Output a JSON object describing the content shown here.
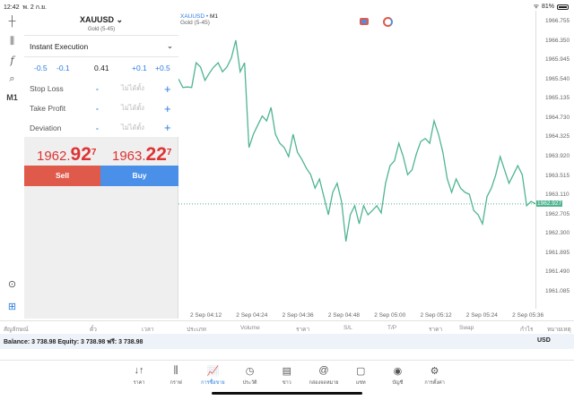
{
  "status": {
    "time": "12:42",
    "date": "พ. 2 ก.ย.",
    "battery": "81%"
  },
  "toolbar": {
    "timeframe": "M1"
  },
  "order": {
    "symbol": "XAUUSD",
    "description": "Gold (5-45)",
    "type": "Instant Execution",
    "volume": {
      "dec_large": "-0.5",
      "dec_small": "-0.1",
      "value": "0.41",
      "inc_small": "+0.1",
      "inc_large": "+0.5"
    },
    "fields": [
      {
        "label": "Stop Loss",
        "value": "ไม่ได้ตั้ง"
      },
      {
        "label": "Take Profit",
        "value": "ไม่ได้ตั้ง"
      },
      {
        "label": "Deviation",
        "value": "ไม่ได้ตั้ง"
      }
    ],
    "minus": "-",
    "plus": "+",
    "bid": {
      "prefix": "1962.",
      "big": "92",
      "sup": "7"
    },
    "ask": {
      "prefix": "1963.",
      "big": "22",
      "sup": "7"
    },
    "sell_label": "Sell",
    "buy_label": "Buy"
  },
  "colors": {
    "line": "#4fb58f",
    "sell": "#e05a4b",
    "buy": "#4a90e8",
    "accent": "#2b7de0"
  },
  "chart_data": {
    "type": "line",
    "symbol": "XAUUSD",
    "timeframe": "M1",
    "subtitle": "Gold (5-45)",
    "current_price": "1962.927",
    "ylim": [
      1961.085,
      1966.755
    ],
    "yticks": [
      "1966.755",
      "1966.350",
      "1965.945",
      "1965.540",
      "1965.135",
      "1964.730",
      "1964.325",
      "1963.920",
      "1963.515",
      "1963.110",
      "1962.705",
      "1962.300",
      "1961.895",
      "1961.490",
      "1961.085"
    ],
    "xticks": [
      "2 Sep 04:12",
      "2 Sep 04:24",
      "2 Sep 04:36",
      "2 Sep 04:48",
      "2 Sep 05:00",
      "2 Sep 05:12",
      "2 Sep 05:24",
      "2 Sep 05:36"
    ],
    "values": [
      1965.55,
      1965.37,
      1965.38,
      1965.37,
      1965.89,
      1965.8,
      1965.52,
      1965.67,
      1965.8,
      1965.89,
      1965.7,
      1965.8,
      1965.99,
      1966.36,
      1965.7,
      1965.89,
      1964.11,
      1964.39,
      1964.58,
      1964.77,
      1964.67,
      1964.95,
      1964.39,
      1964.2,
      1964.11,
      1963.92,
      1964.39,
      1964.01,
      1963.86,
      1963.68,
      1963.54,
      1963.26,
      1963.45,
      1963.08,
      1962.7,
      1963.17,
      1963.36,
      1962.98,
      1962.14,
      1962.7,
      1962.89,
      1962.51,
      1962.89,
      1962.7,
      1962.79,
      1962.89,
      1962.74,
      1963.36,
      1963.73,
      1963.83,
      1964.2,
      1963.92,
      1963.54,
      1963.64,
      1963.98,
      1964.24,
      1964.3,
      1964.2,
      1964.67,
      1964.39,
      1964.01,
      1963.45,
      1963.17,
      1963.45,
      1963.26,
      1963.17,
      1963.13,
      1962.79,
      1962.7,
      1962.51,
      1963.08,
      1963.26,
      1963.54,
      1963.92,
      1963.64,
      1963.36,
      1963.54,
      1963.73,
      1963.54,
      1962.89,
      1962.98,
      1962.93
    ]
  },
  "table": {
    "headers": [
      "สัญลักษณ์",
      "ตั๋ว",
      "เวลา",
      "ประเภท",
      "Volume",
      "ราคา",
      "S/L",
      "T/P",
      "ราคา",
      "Swap",
      "กำไร",
      "หมายเหตุ"
    ]
  },
  "balance": {
    "text": "Balance: 3 738.98 Equity: 3 738.98 ฟรี: 3 738.98",
    "currency": "USD"
  },
  "tabs": [
    {
      "label": "ราคา",
      "icon": "↓↑"
    },
    {
      "label": "กราฟ",
      "icon": "⫼"
    },
    {
      "label": "การซื้อขาย",
      "icon": "📈"
    },
    {
      "label": "ประวัติ",
      "icon": "◷"
    },
    {
      "label": "ข่าว",
      "icon": "▤"
    },
    {
      "label": "กล่องจดหมาย",
      "icon": "@"
    },
    {
      "label": "แชท",
      "icon": "▢"
    },
    {
      "label": "บัญชี",
      "icon": "◉"
    },
    {
      "label": "การตั้งค่า",
      "icon": "⚙"
    }
  ]
}
